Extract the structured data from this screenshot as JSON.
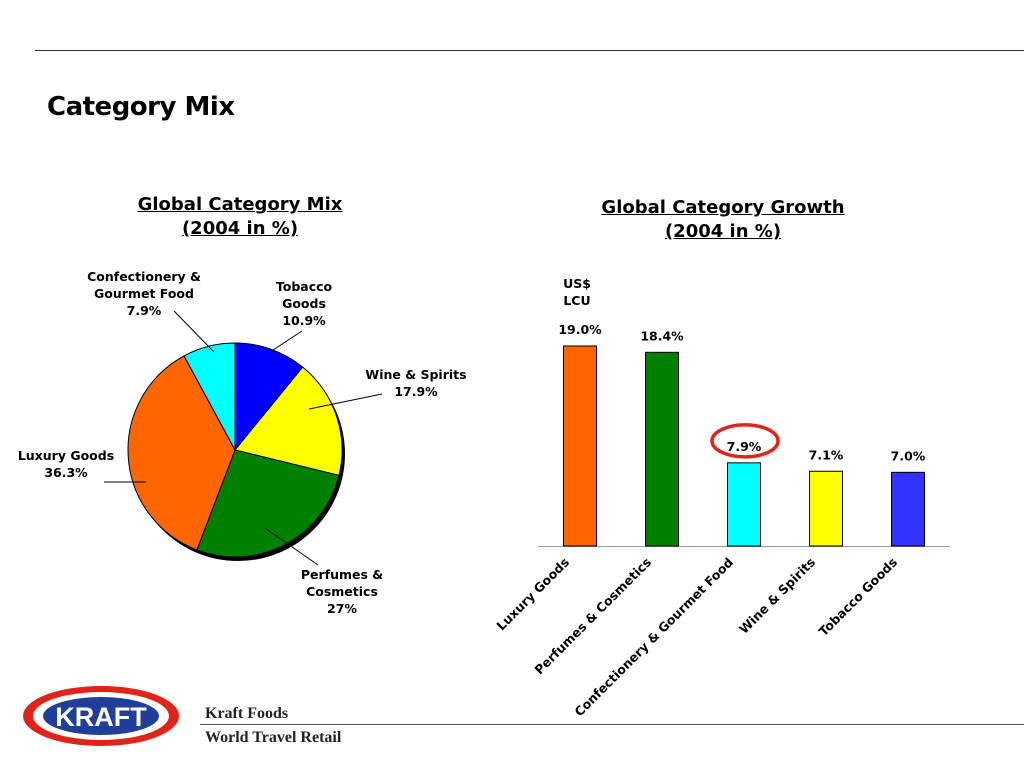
{
  "page": {
    "title": "Category Mix"
  },
  "pie_chart": {
    "title_line1": "Global Category Mix ",
    "title_line2": "(2004 in %)"
  },
  "bar_chart": {
    "title_line1": "Global Category Growth",
    "title_line2": "(2004 in %)",
    "currency_line1": "US$",
    "currency_line2": "LCU",
    "highlight_color": "#e2231a"
  },
  "chart_data": [
    {
      "type": "pie",
      "slices": [
        {
          "name": "Tobacco Goods",
          "label_lines": [
            "Tobacco",
            "Goods",
            "10.9%"
          ],
          "value": 10.9,
          "color": "#0000ff"
        },
        {
          "name": "Wine & Spirits",
          "label_lines": [
            "Wine & Spirits",
            "17.9%"
          ],
          "value": 17.9,
          "color": "#ffff00"
        },
        {
          "name": "Perfumes & Cosmetics",
          "label_lines": [
            "Perfumes &",
            "Cosmetics",
            "27%"
          ],
          "value": 27,
          "color": "#008000"
        },
        {
          "name": "Luxury Goods",
          "label_lines": [
            "Luxury Goods",
            "36.3%"
          ],
          "value": 36.3,
          "color": "#ff6600"
        },
        {
          "name": "Confectionery & Gourmet Food",
          "label_lines": [
            "Confectionery &",
            "Gourmet Food",
            "7.9%"
          ],
          "value": 7.9,
          "color": "#00ffff"
        }
      ]
    },
    {
      "type": "bar",
      "categories": [
        "Luxury Goods",
        "Perfumes & Cosmetics",
        "Confectionery & Gourmet Food",
        "Wine & Spirits",
        "Tobacco Goods"
      ],
      "values": [
        19.0,
        18.4,
        7.9,
        7.1,
        7.0
      ],
      "value_labels": [
        "19.0%",
        "18.4%",
        "7.9%",
        "7.1%",
        "7.0%"
      ],
      "colors": [
        "#ff6600",
        "#008000",
        "#00ffff",
        "#ffff00",
        "#3333ff"
      ],
      "highlighted_category": "Confectionery & Gourmet Food",
      "ylim": [
        0,
        19.0
      ]
    }
  ],
  "footer": {
    "logo_text": "KRAFT",
    "logo_colors": {
      "outer": "#e2231a",
      "inner": "#ffffff",
      "core": "#1f3f9a"
    },
    "company": "Kraft Foods",
    "division": "World Travel Retail"
  }
}
